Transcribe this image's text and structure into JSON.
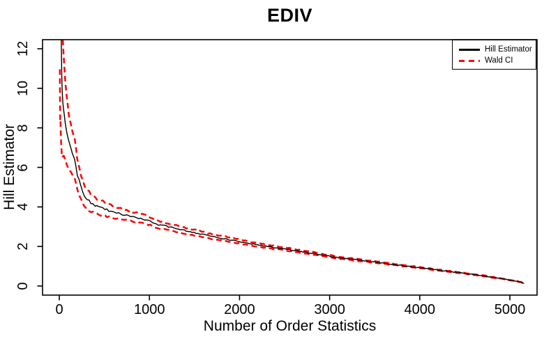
{
  "chart_data": {
    "type": "line",
    "title": "EDIV",
    "xlabel": "Number of Order Statistics",
    "ylabel": "Hill Estimator",
    "xlim": [
      -186,
      5302
    ],
    "ylim": [
      -0.46,
      12.46
    ],
    "x_ticks": [
      0,
      1000,
      2000,
      3000,
      4000,
      5000
    ],
    "y_ticks": [
      0,
      2,
      4,
      6,
      8,
      10,
      12
    ],
    "grid": false,
    "background": "#ffffff",
    "legend": {
      "position": "topright",
      "entries": [
        {
          "label": "Hill Estimator",
          "color": "#000000",
          "style": "solid"
        },
        {
          "label": "Wald CI",
          "color": "#ff0000",
          "style": "dashed"
        }
      ]
    },
    "wald_ci_multiplier": 1.96,
    "series": [
      {
        "name": "Hill Estimator",
        "color": "#000000",
        "style": "solid",
        "points": [
          [
            6,
            55
          ],
          [
            8,
            30
          ],
          [
            10,
            22
          ],
          [
            13,
            18.5
          ],
          [
            16,
            15.5
          ],
          [
            20,
            13.2
          ],
          [
            24,
            11.8
          ],
          [
            28,
            10.6
          ],
          [
            33,
            9.9
          ],
          [
            40,
            9.4
          ],
          [
            48,
            9.05
          ],
          [
            55,
            8.75
          ],
          [
            65,
            8.3
          ],
          [
            75,
            8.0
          ],
          [
            85,
            7.75
          ],
          [
            95,
            7.55
          ],
          [
            105,
            7.35
          ],
          [
            115,
            7.2
          ],
          [
            130,
            7.0
          ],
          [
            145,
            6.75
          ],
          [
            158,
            6.6
          ],
          [
            170,
            6.45
          ],
          [
            185,
            6.1
          ],
          [
            200,
            5.65
          ],
          [
            215,
            5.4
          ],
          [
            235,
            5.1
          ],
          [
            255,
            4.85
          ],
          [
            275,
            4.6
          ],
          [
            295,
            4.45
          ],
          [
            320,
            4.33
          ],
          [
            350,
            4.22
          ],
          [
            390,
            4.1
          ],
          [
            430,
            4.0
          ],
          [
            480,
            3.93
          ],
          [
            530,
            3.85
          ],
          [
            590,
            3.75
          ],
          [
            650,
            3.68
          ],
          [
            720,
            3.6
          ],
          [
            800,
            3.52
          ],
          [
            900,
            3.42
          ],
          [
            1000,
            3.3
          ],
          [
            1080,
            3.12
          ],
          [
            1180,
            3.03
          ],
          [
            1280,
            2.92
          ],
          [
            1400,
            2.8
          ],
          [
            1550,
            2.65
          ],
          [
            1700,
            2.5
          ],
          [
            1850,
            2.38
          ],
          [
            2000,
            2.25
          ],
          [
            2150,
            2.12
          ],
          [
            2300,
            2.0
          ],
          [
            2500,
            1.88
          ],
          [
            2700,
            1.73
          ],
          [
            2900,
            1.58
          ],
          [
            3100,
            1.43
          ],
          [
            3300,
            1.32
          ],
          [
            3500,
            1.21
          ],
          [
            3700,
            1.1
          ],
          [
            3900,
            0.98
          ],
          [
            4100,
            0.87
          ],
          [
            4300,
            0.75
          ],
          [
            4500,
            0.64
          ],
          [
            4700,
            0.52
          ],
          [
            4900,
            0.38
          ],
          [
            5000,
            0.3
          ],
          [
            5080,
            0.24
          ],
          [
            5130,
            0.18
          ],
          [
            5158,
            0.12
          ]
        ]
      },
      {
        "name": "Wald CI upper",
        "color": "#ff0000",
        "style": "dashed",
        "derived": "hill * (1 + 1.96/sqrt(k))"
      },
      {
        "name": "Wald CI lower",
        "color": "#ff0000",
        "style": "dashed",
        "derived": "hill * (1 - 1.96/sqrt(k))"
      }
    ]
  }
}
